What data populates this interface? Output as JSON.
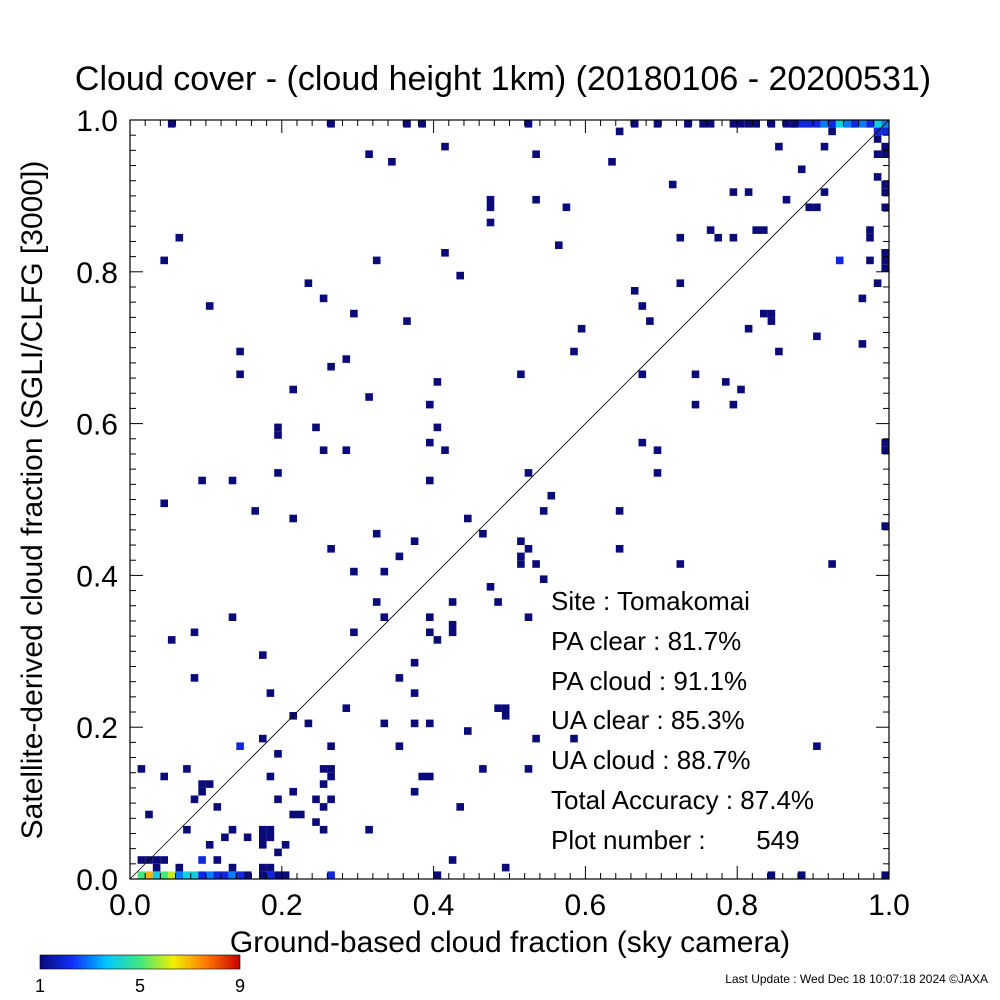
{
  "chart_data": {
    "type": "heatmap",
    "title": "Cloud cover - (cloud height 1km)  (20180106 - 20200531)",
    "xlabel": "Ground-based cloud fraction (sky camera)",
    "ylabel": "Satellite-derived cloud fraction (SGLI/CLFG [3000])",
    "xlim": [
      0.0,
      1.0
    ],
    "ylim": [
      0.0,
      1.0
    ],
    "x_ticks": [
      "0.0",
      "0.2",
      "0.4",
      "0.6",
      "0.8",
      "1.0"
    ],
    "y_ticks": [
      "0.0",
      "0.2",
      "0.4",
      "0.6",
      "0.8",
      "1.0"
    ],
    "bin_size": 0.01,
    "grid": false,
    "reference_line": "1:1 diagonal",
    "stats": {
      "site": "Site : Tomakomai",
      "pa_clear": "PA clear :  81.7%",
      "pa_cloud": "PA cloud :  91.1%",
      "ua_clear": "UA clear :  85.3%",
      "ua_cloud": "UA cloud :  88.7%",
      "total_accuracy": "Total Accuracy :  87.4%",
      "plot_number": "Plot number :       549"
    },
    "colorbar": {
      "min": 1,
      "max": 9,
      "ticks": [
        "1",
        "5",
        "9"
      ],
      "colors": [
        "#0a0a78",
        "#1030ff",
        "#00c8ff",
        "#40e880",
        "#f0f000",
        "#ff7800",
        "#c80000"
      ]
    },
    "points": [
      [
        0.01,
        0.0,
        5
      ],
      [
        0.02,
        0.0,
        7
      ],
      [
        0.03,
        0.0,
        4
      ],
      [
        0.04,
        0.0,
        5
      ],
      [
        0.05,
        0.0,
        6
      ],
      [
        0.06,
        0.0,
        3
      ],
      [
        0.07,
        0.0,
        4
      ],
      [
        0.08,
        0.0,
        4
      ],
      [
        0.09,
        0.0,
        2
      ],
      [
        0.1,
        0.0,
        3
      ],
      [
        0.11,
        0.0,
        2
      ],
      [
        0.12,
        0.0,
        2
      ],
      [
        0.13,
        0.0,
        3
      ],
      [
        0.14,
        0.0,
        2
      ],
      [
        0.15,
        0.0,
        1
      ],
      [
        0.17,
        0.0,
        1
      ],
      [
        0.18,
        0.0,
        2
      ],
      [
        0.19,
        0.0,
        1
      ],
      [
        0.2,
        0.0,
        1
      ],
      [
        0.26,
        0.0,
        2
      ],
      [
        0.4,
        0.0,
        1
      ],
      [
        0.84,
        0.0,
        1
      ],
      [
        0.88,
        0.0,
        1
      ],
      [
        1.0,
        0.0,
        1
      ],
      [
        0.02,
        0.02,
        1
      ],
      [
        0.03,
        0.02,
        1
      ],
      [
        0.01,
        0.02,
        1
      ],
      [
        0.04,
        0.02,
        1
      ],
      [
        0.09,
        0.02,
        2
      ],
      [
        0.11,
        0.02,
        1
      ],
      [
        0.42,
        0.02,
        1
      ],
      [
        0.49,
        0.01,
        1
      ],
      [
        0.03,
        0.01,
        1
      ],
      [
        0.06,
        0.01,
        1
      ],
      [
        0.13,
        0.01,
        1
      ],
      [
        0.17,
        0.01,
        1
      ],
      [
        0.18,
        0.01,
        1
      ],
      [
        0.02,
        0.08,
        1
      ],
      [
        0.07,
        0.06,
        1
      ],
      [
        0.1,
        0.04,
        1
      ],
      [
        0.12,
        0.05,
        1
      ],
      [
        0.13,
        0.06,
        1
      ],
      [
        0.15,
        0.05,
        1
      ],
      [
        0.17,
        0.04,
        1
      ],
      [
        0.17,
        0.05,
        1
      ],
      [
        0.17,
        0.06,
        1
      ],
      [
        0.18,
        0.05,
        1
      ],
      [
        0.18,
        0.06,
        1
      ],
      [
        0.19,
        0.03,
        1
      ],
      [
        0.2,
        0.04,
        1
      ],
      [
        0.21,
        0.08,
        1
      ],
      [
        0.22,
        0.08,
        1
      ],
      [
        0.24,
        0.07,
        1
      ],
      [
        0.25,
        0.06,
        1
      ],
      [
        0.25,
        0.09,
        1
      ],
      [
        0.26,
        0.1,
        1
      ],
      [
        0.26,
        0.13,
        1
      ],
      [
        0.19,
        0.1,
        1
      ],
      [
        0.11,
        0.09,
        1
      ],
      [
        0.09,
        0.11,
        1
      ],
      [
        0.08,
        0.1,
        1
      ],
      [
        0.07,
        0.14,
        1
      ],
      [
        0.09,
        0.12,
        1
      ],
      [
        0.1,
        0.12,
        1
      ],
      [
        0.01,
        0.14,
        1
      ],
      [
        0.04,
        0.13,
        1
      ],
      [
        0.18,
        0.13,
        1
      ],
      [
        0.21,
        0.11,
        1
      ],
      [
        0.25,
        0.12,
        1
      ],
      [
        0.26,
        0.14,
        1
      ],
      [
        0.24,
        0.1,
        1
      ],
      [
        0.25,
        0.14,
        1
      ],
      [
        0.31,
        0.06,
        1
      ],
      [
        0.37,
        0.11,
        1
      ],
      [
        0.38,
        0.13,
        1
      ],
      [
        0.39,
        0.13,
        1
      ],
      [
        0.43,
        0.09,
        1
      ],
      [
        0.14,
        0.17,
        2
      ],
      [
        0.17,
        0.18,
        1
      ],
      [
        0.19,
        0.16,
        1
      ],
      [
        0.21,
        0.21,
        1
      ],
      [
        0.23,
        0.2,
        1
      ],
      [
        0.26,
        0.17,
        1
      ],
      [
        0.28,
        0.22,
        1
      ],
      [
        0.33,
        0.2,
        1
      ],
      [
        0.35,
        0.17,
        1
      ],
      [
        0.37,
        0.2,
        1
      ],
      [
        0.39,
        0.2,
        1
      ],
      [
        0.44,
        0.19,
        1
      ],
      [
        0.46,
        0.14,
        1
      ],
      [
        0.48,
        0.22,
        1
      ],
      [
        0.49,
        0.21,
        1
      ],
      [
        0.49,
        0.22,
        1
      ],
      [
        0.52,
        0.14,
        1
      ],
      [
        0.53,
        0.18,
        1
      ],
      [
        0.58,
        0.18,
        1
      ],
      [
        0.9,
        0.17,
        1
      ],
      [
        0.18,
        0.24,
        1
      ],
      [
        0.08,
        0.26,
        1
      ],
      [
        0.05,
        0.31,
        1
      ],
      [
        0.08,
        0.32,
        1
      ],
      [
        0.13,
        0.34,
        1
      ],
      [
        0.17,
        0.29,
        1
      ],
      [
        0.29,
        0.32,
        1
      ],
      [
        0.32,
        0.36,
        1
      ],
      [
        0.33,
        0.34,
        1
      ],
      [
        0.35,
        0.26,
        1
      ],
      [
        0.37,
        0.24,
        1
      ],
      [
        0.37,
        0.28,
        1
      ],
      [
        0.39,
        0.32,
        1
      ],
      [
        0.4,
        0.31,
        1
      ],
      [
        0.39,
        0.34,
        1
      ],
      [
        0.42,
        0.32,
        1
      ],
      [
        0.42,
        0.33,
        1
      ],
      [
        0.42,
        0.36,
        1
      ],
      [
        0.47,
        0.38,
        1
      ],
      [
        0.48,
        0.36,
        1
      ],
      [
        0.52,
        0.34,
        1
      ],
      [
        0.29,
        0.4,
        1
      ],
      [
        0.33,
        0.4,
        1
      ],
      [
        0.32,
        0.45,
        1
      ],
      [
        0.35,
        0.42,
        1
      ],
      [
        0.37,
        0.44,
        1
      ],
      [
        0.44,
        0.47,
        1
      ],
      [
        0.46,
        0.45,
        1
      ],
      [
        0.51,
        0.41,
        1
      ],
      [
        0.51,
        0.42,
        1
      ],
      [
        0.51,
        0.44,
        1
      ],
      [
        0.52,
        0.43,
        1
      ],
      [
        0.53,
        0.41,
        1
      ],
      [
        0.54,
        0.39,
        1
      ],
      [
        0.54,
        0.48,
        1
      ],
      [
        0.55,
        0.5,
        1
      ],
      [
        0.64,
        0.43,
        1
      ],
      [
        0.64,
        0.48,
        1
      ],
      [
        0.72,
        0.41,
        1
      ],
      [
        0.92,
        0.41,
        1
      ],
      [
        0.04,
        0.49,
        1
      ],
      [
        0.09,
        0.52,
        1
      ],
      [
        0.13,
        0.52,
        1
      ],
      [
        0.16,
        0.48,
        1
      ],
      [
        0.21,
        0.47,
        1
      ],
      [
        0.19,
        0.53,
        1
      ],
      [
        0.26,
        0.43,
        1
      ],
      [
        0.52,
        0.53,
        1
      ],
      [
        0.39,
        0.52,
        1
      ],
      [
        0.19,
        0.58,
        1
      ],
      [
        0.19,
        0.59,
        1
      ],
      [
        0.24,
        0.59,
        1
      ],
      [
        0.25,
        0.56,
        1
      ],
      [
        0.28,
        0.56,
        1
      ],
      [
        0.39,
        0.57,
        1
      ],
      [
        0.4,
        0.59,
        1
      ],
      [
        0.41,
        0.56,
        1
      ],
      [
        0.39,
        0.62,
        1
      ],
      [
        0.4,
        0.65,
        1
      ],
      [
        0.31,
        0.63,
        1
      ],
      [
        0.21,
        0.64,
        1
      ],
      [
        0.14,
        0.66,
        1
      ],
      [
        0.14,
        0.69,
        1
      ],
      [
        0.26,
        0.67,
        1
      ],
      [
        0.28,
        0.68,
        1
      ],
      [
        0.1,
        0.75,
        1
      ],
      [
        0.23,
        0.78,
        1
      ],
      [
        0.25,
        0.76,
        1
      ],
      [
        0.29,
        0.74,
        1
      ],
      [
        0.36,
        0.73,
        1
      ],
      [
        0.04,
        0.81,
        1
      ],
      [
        0.06,
        0.84,
        1
      ],
      [
        0.32,
        0.81,
        1
      ],
      [
        0.41,
        0.82,
        1
      ],
      [
        0.43,
        0.79,
        1
      ],
      [
        0.47,
        0.89,
        1
      ],
      [
        0.47,
        0.88,
        1
      ],
      [
        0.47,
        0.86,
        1
      ],
      [
        0.53,
        0.89,
        1
      ],
      [
        0.56,
        0.83,
        1
      ],
      [
        0.58,
        0.69,
        1
      ],
      [
        0.59,
        0.72,
        1
      ],
      [
        0.51,
        0.66,
        1
      ],
      [
        0.57,
        0.88,
        1
      ],
      [
        0.31,
        0.95,
        1
      ],
      [
        0.34,
        0.94,
        1
      ],
      [
        0.41,
        0.96,
        1
      ],
      [
        0.53,
        0.95,
        1
      ],
      [
        0.63,
        0.94,
        1
      ],
      [
        0.64,
        0.98,
        1
      ],
      [
        0.66,
        0.77,
        1
      ],
      [
        0.67,
        0.75,
        1
      ],
      [
        0.67,
        0.66,
        1
      ],
      [
        0.67,
        0.57,
        1
      ],
      [
        0.69,
        0.56,
        1
      ],
      [
        0.69,
        0.53,
        1
      ],
      [
        0.68,
        0.73,
        1
      ],
      [
        0.71,
        0.91,
        1
      ],
      [
        0.72,
        0.78,
        1
      ],
      [
        0.72,
        0.84,
        1
      ],
      [
        0.74,
        0.66,
        1
      ],
      [
        0.74,
        0.62,
        1
      ],
      [
        0.76,
        0.85,
        1
      ],
      [
        0.77,
        0.84,
        1
      ],
      [
        0.78,
        0.65,
        1
      ],
      [
        0.79,
        0.62,
        1
      ],
      [
        0.79,
        0.9,
        1
      ],
      [
        0.79,
        0.84,
        1
      ],
      [
        0.8,
        0.64,
        1
      ],
      [
        0.81,
        0.9,
        1
      ],
      [
        0.81,
        0.72,
        1
      ],
      [
        0.82,
        0.85,
        1
      ],
      [
        0.83,
        0.85,
        1
      ],
      [
        0.83,
        0.74,
        1
      ],
      [
        0.84,
        0.74,
        1
      ],
      [
        0.84,
        0.73,
        1
      ],
      [
        0.85,
        0.69,
        1
      ],
      [
        0.85,
        0.96,
        1
      ],
      [
        0.86,
        0.89,
        1
      ],
      [
        0.87,
        0.99,
        1
      ],
      [
        0.88,
        0.93,
        1
      ],
      [
        0.89,
        0.88,
        1
      ],
      [
        0.9,
        0.88,
        1
      ],
      [
        0.9,
        0.71,
        1
      ],
      [
        0.91,
        0.9,
        1
      ],
      [
        0.91,
        0.96,
        1
      ],
      [
        0.92,
        0.98,
        1
      ],
      [
        0.93,
        0.81,
        2
      ],
      [
        0.96,
        0.76,
        1
      ],
      [
        0.96,
        0.7,
        1
      ],
      [
        0.97,
        0.81,
        1
      ],
      [
        0.97,
        0.84,
        1
      ],
      [
        0.98,
        0.78,
        1
      ],
      [
        0.98,
        0.92,
        1
      ],
      [
        0.98,
        0.95,
        1
      ],
      [
        0.99,
        0.96,
        1
      ],
      [
        0.99,
        0.8,
        1
      ],
      [
        0.99,
        0.81,
        1
      ],
      [
        0.99,
        0.82,
        1
      ],
      [
        0.99,
        0.9,
        1
      ],
      [
        0.99,
        0.91,
        1
      ],
      [
        0.99,
        0.88,
        1
      ],
      [
        0.99,
        0.95,
        1
      ],
      [
        0.99,
        0.57,
        1
      ],
      [
        0.99,
        0.56,
        1
      ],
      [
        0.99,
        0.46,
        1
      ],
      [
        0.97,
        0.85,
        1
      ],
      [
        0.98,
        0.97,
        1
      ],
      [
        0.05,
        0.99,
        1
      ],
      [
        0.26,
        0.99,
        1
      ],
      [
        0.36,
        0.99,
        1
      ],
      [
        0.38,
        0.99,
        1
      ],
      [
        0.52,
        0.99,
        1
      ],
      [
        0.66,
        0.99,
        1
      ],
      [
        0.69,
        0.99,
        1
      ],
      [
        0.73,
        0.99,
        1
      ],
      [
        0.75,
        0.99,
        1
      ],
      [
        0.76,
        0.99,
        1
      ],
      [
        0.79,
        0.99,
        1
      ],
      [
        0.8,
        0.99,
        1
      ],
      [
        0.81,
        0.99,
        1
      ],
      [
        0.82,
        0.99,
        1
      ],
      [
        0.84,
        0.99,
        1
      ],
      [
        0.86,
        0.99,
        1
      ],
      [
        0.87,
        1.0,
        1
      ],
      [
        0.88,
        1.0,
        2
      ],
      [
        0.89,
        1.0,
        2
      ],
      [
        0.9,
        1.0,
        2
      ],
      [
        0.91,
        1.0,
        3
      ],
      [
        0.92,
        1.0,
        2
      ],
      [
        0.93,
        1.0,
        4
      ],
      [
        0.94,
        1.0,
        3
      ],
      [
        0.95,
        1.0,
        4
      ],
      [
        0.96,
        1.0,
        6
      ],
      [
        0.97,
        1.0,
        7
      ],
      [
        0.98,
        1.0,
        8
      ],
      [
        0.99,
        1.0,
        9
      ],
      [
        0.99,
        0.99,
        3
      ],
      [
        0.98,
        0.99,
        4
      ],
      [
        0.97,
        0.99,
        2
      ],
      [
        0.96,
        0.99,
        3
      ],
      [
        0.95,
        0.99,
        2
      ],
      [
        0.99,
        0.98,
        2
      ],
      [
        0.98,
        0.98,
        2
      ]
    ]
  },
  "footer": {
    "last_update": "Last Update : Wed Dec 18 10:07:18 2024  ©JAXA"
  }
}
